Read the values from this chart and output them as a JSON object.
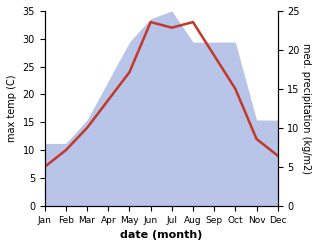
{
  "months": [
    "Jan",
    "Feb",
    "Mar",
    "Apr",
    "May",
    "Jun",
    "Jul",
    "Aug",
    "Sep",
    "Oct",
    "Nov",
    "Dec"
  ],
  "month_x": [
    1,
    2,
    3,
    4,
    5,
    6,
    7,
    8,
    9,
    10,
    11,
    12
  ],
  "temperature": [
    7,
    10,
    14,
    19,
    24,
    33,
    32,
    33,
    27,
    21,
    12,
    9
  ],
  "precipitation": [
    8,
    8,
    11,
    16,
    21,
    24,
    25,
    21,
    21,
    21,
    11,
    11
  ],
  "temp_color": "#c0392b",
  "precip_color": "#b8c4e8",
  "temp_ylim": [
    0,
    35
  ],
  "precip_ylim": [
    0,
    25
  ],
  "temp_yticks": [
    0,
    5,
    10,
    15,
    20,
    25,
    30,
    35
  ],
  "precip_yticks": [
    0,
    5,
    10,
    15,
    20,
    25
  ],
  "ylabel_left": "max temp (C)",
  "ylabel_right": "med. precipitation (kg/m2)",
  "xlabel": "date (month)",
  "background_color": "#ffffff",
  "figsize": [
    3.18,
    2.47
  ],
  "dpi": 100,
  "temp_linewidth": 1.8,
  "precip_scale": 1.4
}
